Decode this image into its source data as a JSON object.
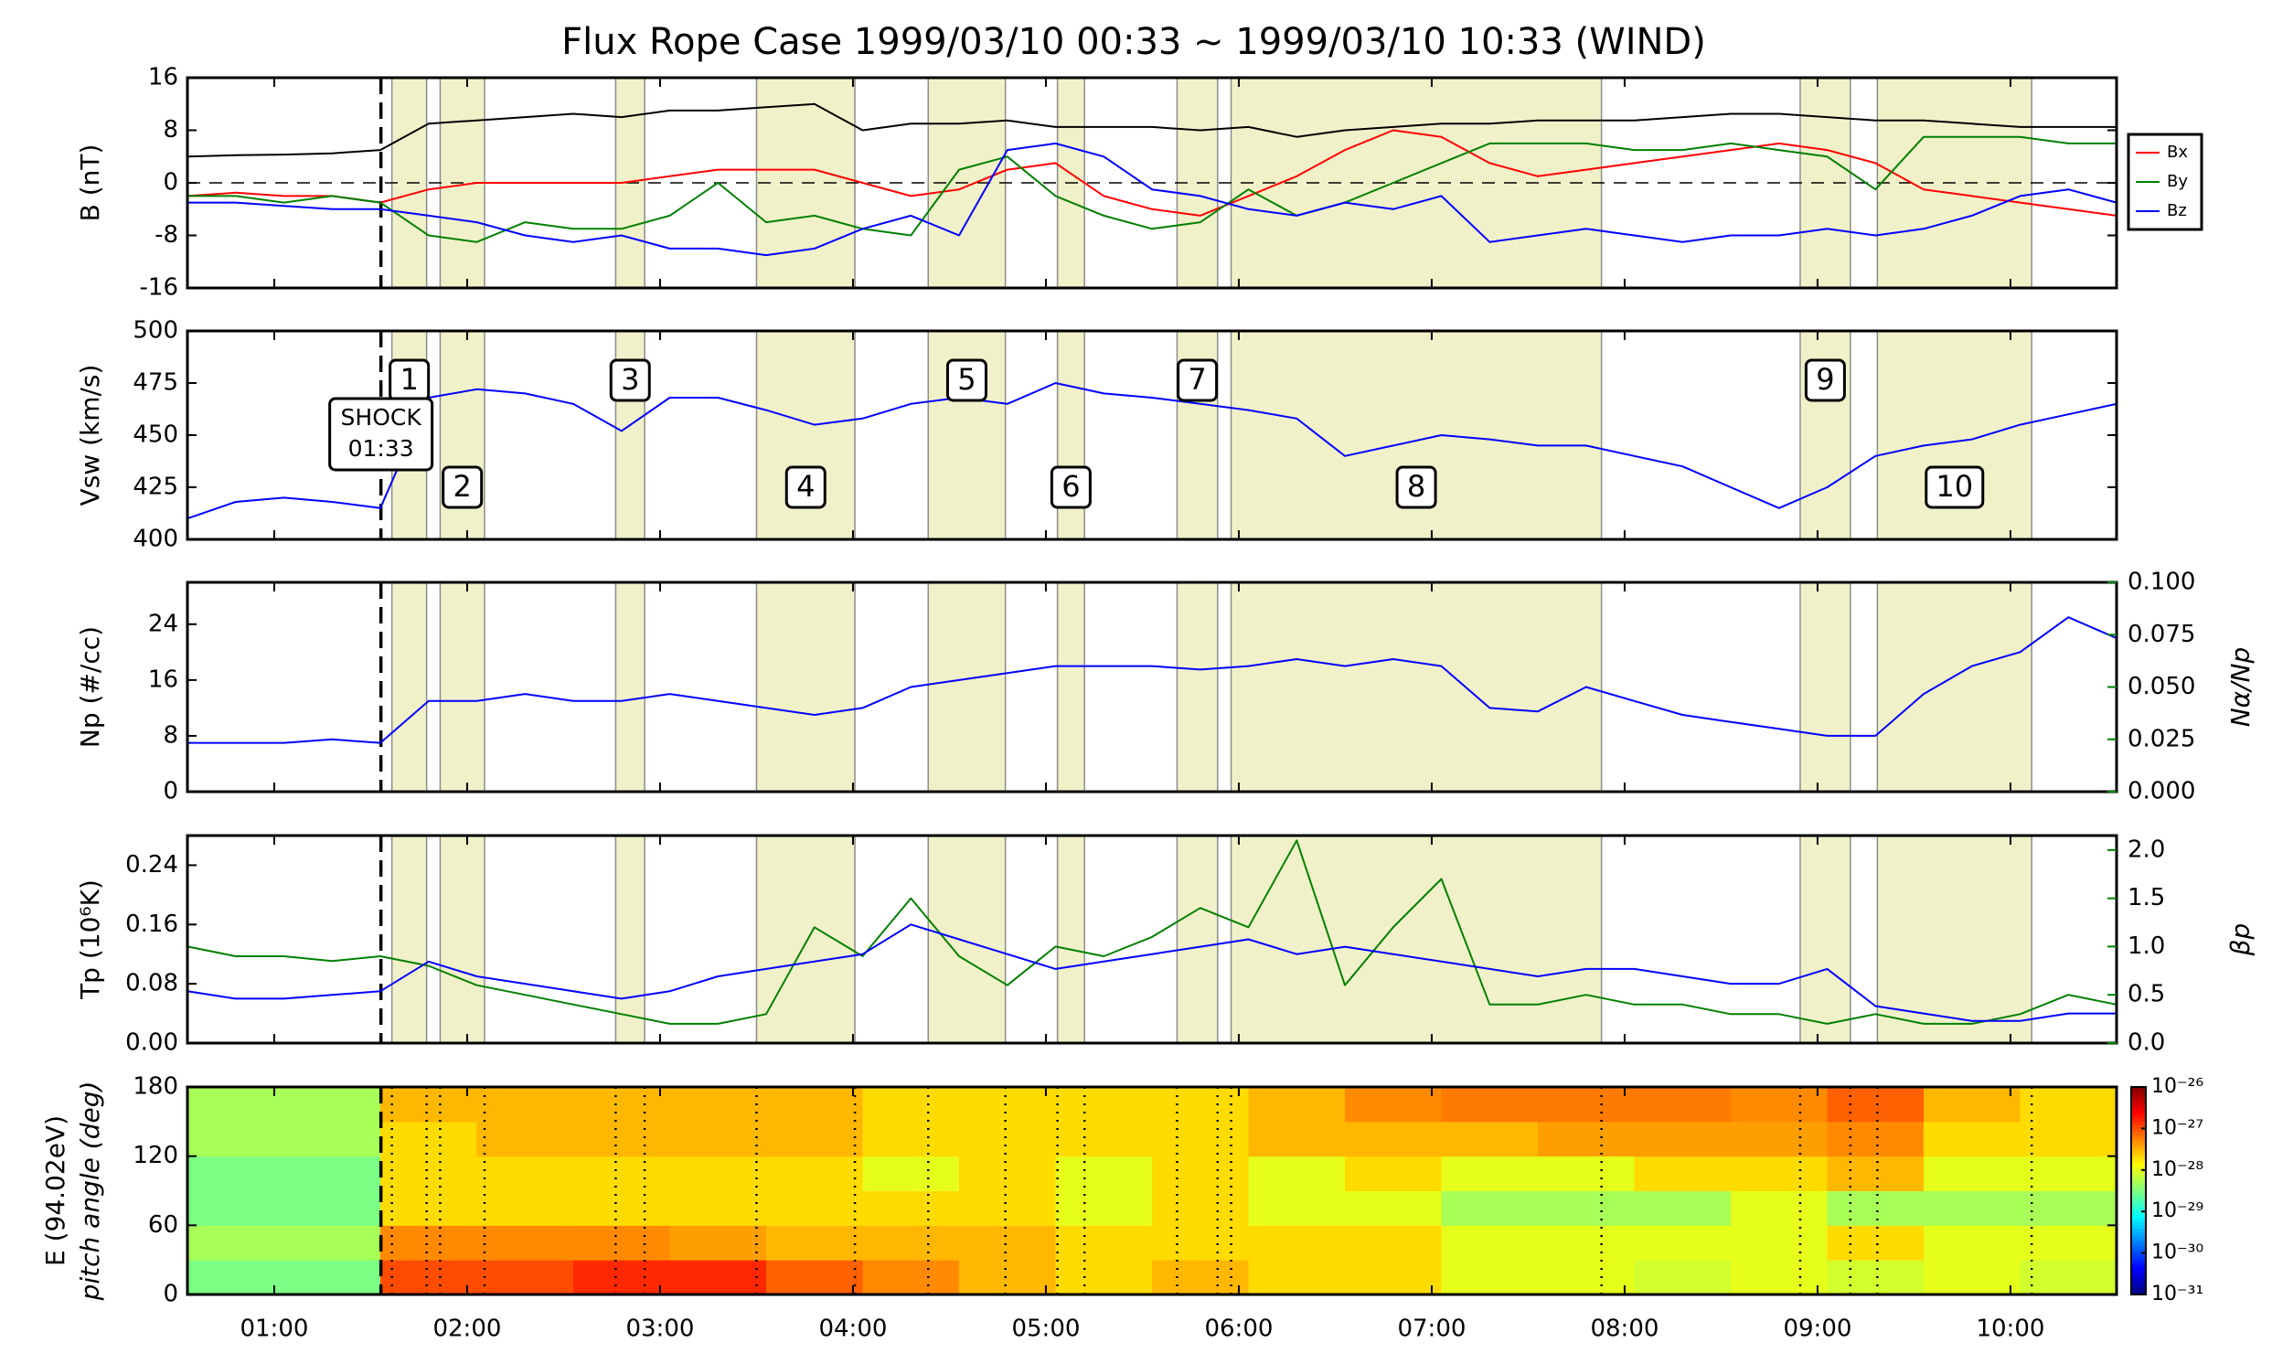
{
  "chart_data": [
    {
      "type": "line",
      "title": "Flux Rope Case 1999/03/10 00:33 ~ 1999/03/10 10:33 (WIND)",
      "ylabel": "B (nT)",
      "ylim": [
        -16,
        16
      ],
      "yticks": [
        -16,
        -8,
        0,
        8,
        16
      ],
      "zero_line": true,
      "legend": "right",
      "x": [
        0.55,
        0.8,
        1.05,
        1.3,
        1.55,
        1.8,
        2.05,
        2.3,
        2.55,
        2.8,
        3.05,
        3.3,
        3.55,
        3.8,
        4.05,
        4.3,
        4.55,
        4.8,
        5.05,
        5.3,
        5.55,
        5.8,
        6.05,
        6.3,
        6.55,
        6.8,
        7.05,
        7.3,
        7.55,
        7.8,
        8.05,
        8.3,
        8.55,
        8.8,
        9.05,
        9.3,
        9.55,
        9.8,
        10.05,
        10.3,
        10.55
      ],
      "series": [
        {
          "color": "#000000",
          "values": [
            4,
            4.2,
            4.3,
            4.5,
            5,
            9,
            9.5,
            10,
            10.5,
            10,
            11,
            11,
            11.5,
            12,
            8,
            9,
            9,
            9.5,
            8.5,
            8.5,
            8.5,
            8,
            8.5,
            7,
            8,
            8.5,
            9,
            9,
            9.5,
            9.5,
            9.5,
            10,
            10.5,
            10.5,
            10,
            9.5,
            9.5,
            9,
            8.5,
            8.5,
            8.5
          ]
        },
        {
          "name": "Bx",
          "color": "#ff0000",
          "values": [
            -2,
            -1.5,
            -2,
            -2,
            -3,
            -1,
            0,
            0,
            0,
            0,
            1,
            2,
            2,
            2,
            0,
            -2,
            -1,
            2,
            3,
            -2,
            -4,
            -5,
            -2,
            1,
            5,
            8,
            7,
            3,
            1,
            2,
            3,
            4,
            5,
            6,
            5,
            3,
            -1,
            -2,
            -3,
            -4,
            -5
          ]
        },
        {
          "name": "By",
          "color": "#008000",
          "values": [
            -2,
            -2,
            -3,
            -2,
            -3,
            -8,
            -9,
            -6,
            -7,
            -7,
            -5,
            0,
            -6,
            -5,
            -7,
            -8,
            2,
            4,
            -2,
            -5,
            -7,
            -6,
            -1,
            -5,
            -3,
            0,
            3,
            6,
            6,
            6,
            5,
            5,
            6,
            5,
            4,
            -1,
            7,
            7,
            7,
            6,
            6
          ]
        },
        {
          "name": "Bz",
          "color": "#0000ff",
          "values": [
            -3,
            -3,
            -3.5,
            -4,
            -4,
            -5,
            -6,
            -8,
            -9,
            -8,
            -10,
            -10,
            -11,
            -10,
            -7,
            -5,
            -8,
            5,
            6,
            4,
            -1,
            -2,
            -4,
            -5,
            -3,
            -4,
            -2,
            -9,
            -8,
            -7,
            -8,
            -9,
            -8,
            -8,
            -7,
            -8,
            -7,
            -5,
            -2,
            -1,
            -3
          ]
        }
      ]
    },
    {
      "type": "line",
      "ylabel": "Vsw (km/s)",
      "ylim": [
        400,
        500
      ],
      "yticks": [
        400,
        425,
        450,
        475,
        500
      ],
      "x": [
        0.55,
        0.8,
        1.05,
        1.3,
        1.55,
        1.8,
        2.05,
        2.3,
        2.55,
        2.8,
        3.05,
        3.3,
        3.55,
        3.8,
        4.05,
        4.3,
        4.55,
        4.8,
        5.05,
        5.3,
        5.55,
        5.8,
        6.05,
        6.3,
        6.55,
        6.8,
        7.05,
        7.3,
        7.55,
        7.8,
        8.05,
        8.3,
        8.55,
        8.8,
        9.05,
        9.3,
        9.55,
        9.8,
        10.05,
        10.3,
        10.55
      ],
      "series": [
        {
          "color": "#0000ff",
          "values": [
            410,
            418,
            420,
            418,
            415,
            468,
            472,
            470,
            465,
            452,
            468,
            468,
            462,
            455,
            458,
            465,
            468,
            465,
            475,
            470,
            468,
            465,
            462,
            458,
            440,
            445,
            450,
            448,
            445,
            445,
            440,
            435,
            425,
            415,
            425,
            440,
            445,
            448,
            455,
            460,
            465
          ]
        }
      ],
      "shock": {
        "x": 1.553,
        "label": [
          "SHOCK",
          "01:33"
        ]
      },
      "intervals": [
        {
          "label": "1",
          "start": 1.61,
          "end": 1.79
        },
        {
          "label": "2",
          "start": 1.86,
          "end": 2.09
        },
        {
          "label": "3",
          "start": 2.77,
          "end": 2.92
        },
        {
          "label": "4",
          "start": 3.5,
          "end": 4.01
        },
        {
          "label": "5",
          "start": 4.39,
          "end": 4.79
        },
        {
          "label": "6",
          "start": 5.06,
          "end": 5.2
        },
        {
          "label": "7",
          "start": 5.68,
          "end": 5.89
        },
        {
          "label": "8",
          "start": 5.96,
          "end": 7.88
        },
        {
          "label": "9",
          "start": 8.91,
          "end": 9.17
        },
        {
          "label": "10",
          "start": 9.31,
          "end": 10.11
        }
      ]
    },
    {
      "type": "line",
      "ylabel": "Np (#/cc)",
      "ylim": [
        0,
        30
      ],
      "yticks": [
        0,
        8,
        16,
        24
      ],
      "y2label": "Nα/Np",
      "y2color": "#008000",
      "y2lim": [
        0,
        0.1
      ],
      "y2ticks": [
        {
          "value": 0,
          "label": "0.000"
        },
        {
          "value": 0.025,
          "label": "0.025"
        },
        {
          "value": 0.05,
          "label": "0.050"
        },
        {
          "value": 0.075,
          "label": "0.075"
        },
        {
          "value": 0.1,
          "label": "0.100"
        }
      ],
      "x": [
        0.55,
        0.8,
        1.05,
        1.3,
        1.55,
        1.8,
        2.05,
        2.3,
        2.55,
        2.8,
        3.05,
        3.3,
        3.55,
        3.8,
        4.05,
        4.3,
        4.55,
        4.8,
        5.05,
        5.3,
        5.55,
        5.8,
        6.05,
        6.3,
        6.55,
        6.8,
        7.05,
        7.3,
        7.55,
        7.8,
        8.05,
        8.3,
        8.55,
        8.8,
        9.05,
        9.3,
        9.55,
        9.8,
        10.05,
        10.3,
        10.55
      ],
      "series": [
        {
          "color": "#0000ff",
          "values": [
            7,
            7,
            7,
            7.5,
            7,
            13,
            13,
            14,
            13,
            13,
            14,
            13,
            12,
            11,
            12,
            15,
            16,
            17,
            18,
            18,
            18,
            17.5,
            18,
            19,
            18,
            19,
            18,
            12,
            11.5,
            15,
            13,
            11,
            10,
            9,
            8,
            8,
            14,
            18,
            20,
            25,
            22
          ]
        }
      ]
    },
    {
      "type": "line",
      "ylabel": "Tp (10⁶K)",
      "ylim": [
        0,
        0.28
      ],
      "yticks": [
        {
          "value": 0,
          "label": "0.00"
        },
        {
          "value": 0.08,
          "label": "0.08"
        },
        {
          "value": 0.16,
          "label": "0.16"
        },
        {
          "value": 0.24,
          "label": "0.24"
        }
      ],
      "y2label": "βp",
      "y2color": "#008000",
      "y2lim": [
        0,
        2.15
      ],
      "y2ticks": [
        {
          "value": 0,
          "label": "0.0"
        },
        0.5,
        {
          "value": 1,
          "label": "1.0"
        },
        1.5,
        {
          "value": 2,
          "label": "2.0"
        }
      ],
      "x": [
        0.55,
        0.8,
        1.05,
        1.3,
        1.55,
        1.8,
        2.05,
        2.3,
        2.55,
        2.8,
        3.05,
        3.3,
        3.55,
        3.8,
        4.05,
        4.3,
        4.55,
        4.8,
        5.05,
        5.3,
        5.55,
        5.8,
        6.05,
        6.3,
        6.55,
        6.8,
        7.05,
        7.3,
        7.55,
        7.8,
        8.05,
        8.3,
        8.55,
        8.8,
        9.05,
        9.3,
        9.55,
        9.8,
        10.05,
        10.3,
        10.55
      ],
      "series": [
        {
          "color": "#008000",
          "axis": "y2",
          "values": [
            1.0,
            0.9,
            0.9,
            0.85,
            0.9,
            0.8,
            0.6,
            0.5,
            0.4,
            0.3,
            0.2,
            0.2,
            0.3,
            1.2,
            0.9,
            1.5,
            0.9,
            0.6,
            1.0,
            0.9,
            1.1,
            1.4,
            1.2,
            2.1,
            0.6,
            1.2,
            1.7,
            0.4,
            0.4,
            0.5,
            0.4,
            0.4,
            0.3,
            0.3,
            0.2,
            0.3,
            0.2,
            0.2,
            0.3,
            0.5,
            0.4
          ]
        },
        {
          "color": "#0000ff",
          "values": [
            0.07,
            0.06,
            0.06,
            0.065,
            0.07,
            0.11,
            0.09,
            0.08,
            0.07,
            0.06,
            0.07,
            0.09,
            0.1,
            0.11,
            0.12,
            0.16,
            0.14,
            0.12,
            0.1,
            0.11,
            0.12,
            0.13,
            0.14,
            0.12,
            0.13,
            0.12,
            0.11,
            0.1,
            0.09,
            0.1,
            0.1,
            0.09,
            0.08,
            0.08,
            0.1,
            0.05,
            0.04,
            0.03,
            0.03,
            0.04,
            0.04
          ]
        }
      ]
    },
    {
      "type": "heatmap",
      "ylabel": [
        "E (94.02eV)",
        "pitch angle (deg)"
      ],
      "ylim": [
        0,
        180
      ],
      "yticks": [
        0,
        60,
        120,
        180
      ],
      "xlim": [
        0.55,
        10.55
      ],
      "xticks": [
        {
          "value": 1,
          "label": "01:00"
        },
        {
          "value": 2,
          "label": "02:00"
        },
        {
          "value": 3,
          "label": "03:00"
        },
        {
          "value": 4,
          "label": "04:00"
        },
        {
          "value": 5,
          "label": "05:00"
        },
        {
          "value": 6,
          "label": "06:00"
        },
        {
          "value": 7,
          "label": "07:00"
        },
        {
          "value": 8,
          "label": "08:00"
        },
        {
          "value": 9,
          "label": "09:00"
        },
        {
          "value": 10,
          "label": "10:00"
        }
      ],
      "x_bins": [
        0.55,
        1.05,
        1.55,
        2.05,
        2.55,
        3.05,
        3.55,
        4.05,
        4.55,
        5.05,
        5.55,
        6.05,
        6.55,
        7.05,
        7.55,
        8.05,
        8.55,
        9.05,
        9.55,
        10.05,
        10.55
      ],
      "y_bins": [
        0,
        30,
        60,
        90,
        120,
        150,
        180
      ],
      "z": [
        [
          3e-29,
          3e-29,
          1e-27,
          1e-27,
          1.5e-27,
          1.5e-27,
          8e-28,
          5e-28,
          3e-28,
          2e-28,
          3e-28,
          2e-28,
          2e-28,
          1e-28,
          1e-28,
          8e-29,
          1e-28,
          8e-29,
          1e-28,
          8e-29
        ],
        [
          5e-29,
          5e-29,
          5e-28,
          5e-28,
          5e-28,
          4e-28,
          3e-28,
          3e-28,
          3e-28,
          2e-28,
          2e-28,
          2e-28,
          2e-28,
          1e-28,
          1e-28,
          1e-28,
          1e-28,
          2e-28,
          1e-28,
          1e-28
        ],
        [
          3e-29,
          3e-29,
          2e-28,
          2e-28,
          2e-28,
          2e-28,
          2e-28,
          2e-28,
          2e-28,
          1e-28,
          2e-28,
          1e-28,
          1e-28,
          5e-29,
          5e-29,
          5e-29,
          1e-28,
          5e-29,
          5e-29,
          5e-29
        ],
        [
          3e-29,
          3e-29,
          2e-28,
          2e-28,
          2e-28,
          2e-28,
          2e-28,
          1e-28,
          2e-28,
          1e-28,
          2e-28,
          1e-28,
          2e-28,
          1e-28,
          1e-28,
          2e-28,
          2e-28,
          3e-28,
          1e-28,
          1e-28
        ],
        [
          5e-29,
          5e-29,
          2e-28,
          3e-28,
          3e-28,
          3e-28,
          3e-28,
          2e-28,
          2e-28,
          2e-28,
          2e-28,
          3e-28,
          3e-28,
          3e-28,
          4e-28,
          4e-28,
          4e-28,
          5e-28,
          2e-28,
          2e-28
        ],
        [
          5e-29,
          5e-29,
          3e-28,
          3e-28,
          3e-28,
          3e-28,
          3e-28,
          2e-28,
          2e-28,
          2e-28,
          2e-28,
          3e-28,
          5e-28,
          6e-28,
          6e-28,
          6e-28,
          5e-28,
          8e-28,
          3e-28,
          2e-28
        ]
      ],
      "clim": [
        1e-31,
        1e-26
      ],
      "clog": true,
      "cticks": [
        {
          "value": 1e-26,
          "label": "10⁻²⁶"
        },
        {
          "value": 1e-27,
          "label": "10⁻²⁷"
        },
        {
          "value": 1e-28,
          "label": "10⁻²⁸"
        },
        {
          "value": 1e-29,
          "label": "10⁻²⁹"
        },
        {
          "value": 1e-30,
          "label": "10⁻³⁰"
        },
        {
          "value": 1e-31,
          "label": "10⁻³¹"
        }
      ]
    }
  ]
}
